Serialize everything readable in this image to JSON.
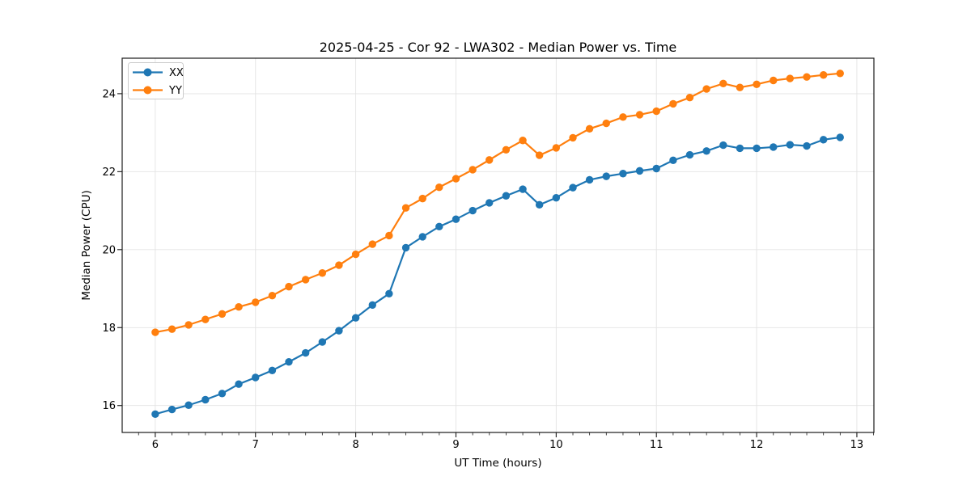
{
  "chart_data": {
    "type": "line",
    "title": "2025-04-25 - Cor 92 - LWA302 - Median Power vs. Time",
    "xlabel": "UT Time (hours)",
    "ylabel": "Median Power (CPU)",
    "xlim": [
      5.67,
      13.17
    ],
    "ylim": [
      15.31,
      24.91
    ],
    "x_major_ticks": [
      6,
      7,
      8,
      9,
      10,
      11,
      12,
      13
    ],
    "x_minor_step": 0.16667,
    "y_major_ticks": [
      16,
      18,
      20,
      22,
      24
    ],
    "grid": true,
    "legend_position": "upper-left",
    "x": [
      6,
      6.167,
      6.333,
      6.5,
      6.667,
      6.833,
      7,
      7.167,
      7.333,
      7.5,
      7.667,
      7.833,
      8,
      8.167,
      8.333,
      8.5,
      8.667,
      8.833,
      9,
      9.167,
      9.333,
      9.5,
      9.667,
      9.833,
      10,
      10.167,
      10.333,
      10.5,
      10.667,
      10.833,
      11,
      11.167,
      11.333,
      11.5,
      11.667,
      11.833,
      12,
      12.167,
      12.333,
      12.5,
      12.667,
      12.833
    ],
    "series": [
      {
        "name": "XX",
        "color": "#1f77b4",
        "values": [
          15.78,
          15.9,
          16.01,
          16.15,
          16.31,
          16.55,
          16.72,
          16.9,
          17.12,
          17.35,
          17.63,
          17.92,
          18.25,
          18.58,
          18.87,
          20.05,
          20.33,
          20.59,
          20.78,
          21.0,
          21.2,
          21.38,
          21.55,
          21.15,
          21.33,
          21.59,
          21.79,
          21.88,
          21.95,
          22.02,
          22.08,
          22.29,
          22.43,
          22.53,
          22.68,
          22.6,
          22.6,
          22.63,
          22.69,
          22.66,
          22.82,
          22.88
        ]
      },
      {
        "name": "YY",
        "color": "#ff7f0e",
        "values": [
          17.88,
          17.96,
          18.07,
          18.21,
          18.35,
          18.53,
          18.65,
          18.82,
          19.05,
          19.23,
          19.4,
          19.6,
          19.88,
          20.14,
          20.36,
          21.07,
          21.31,
          21.6,
          21.82,
          22.05,
          22.3,
          22.56,
          22.8,
          22.42,
          22.61,
          22.87,
          23.1,
          23.24,
          23.4,
          23.46,
          23.55,
          23.74,
          23.9,
          24.12,
          24.26,
          24.16,
          24.24,
          24.34,
          24.39,
          24.43,
          24.48,
          24.52
        ]
      }
    ],
    "colors": {
      "grid": "#e3e3e3",
      "spine": "#1a1a1a",
      "tick": "#1a1a1a",
      "background": "#ffffff",
      "legend_border": "#cccccc"
    }
  }
}
